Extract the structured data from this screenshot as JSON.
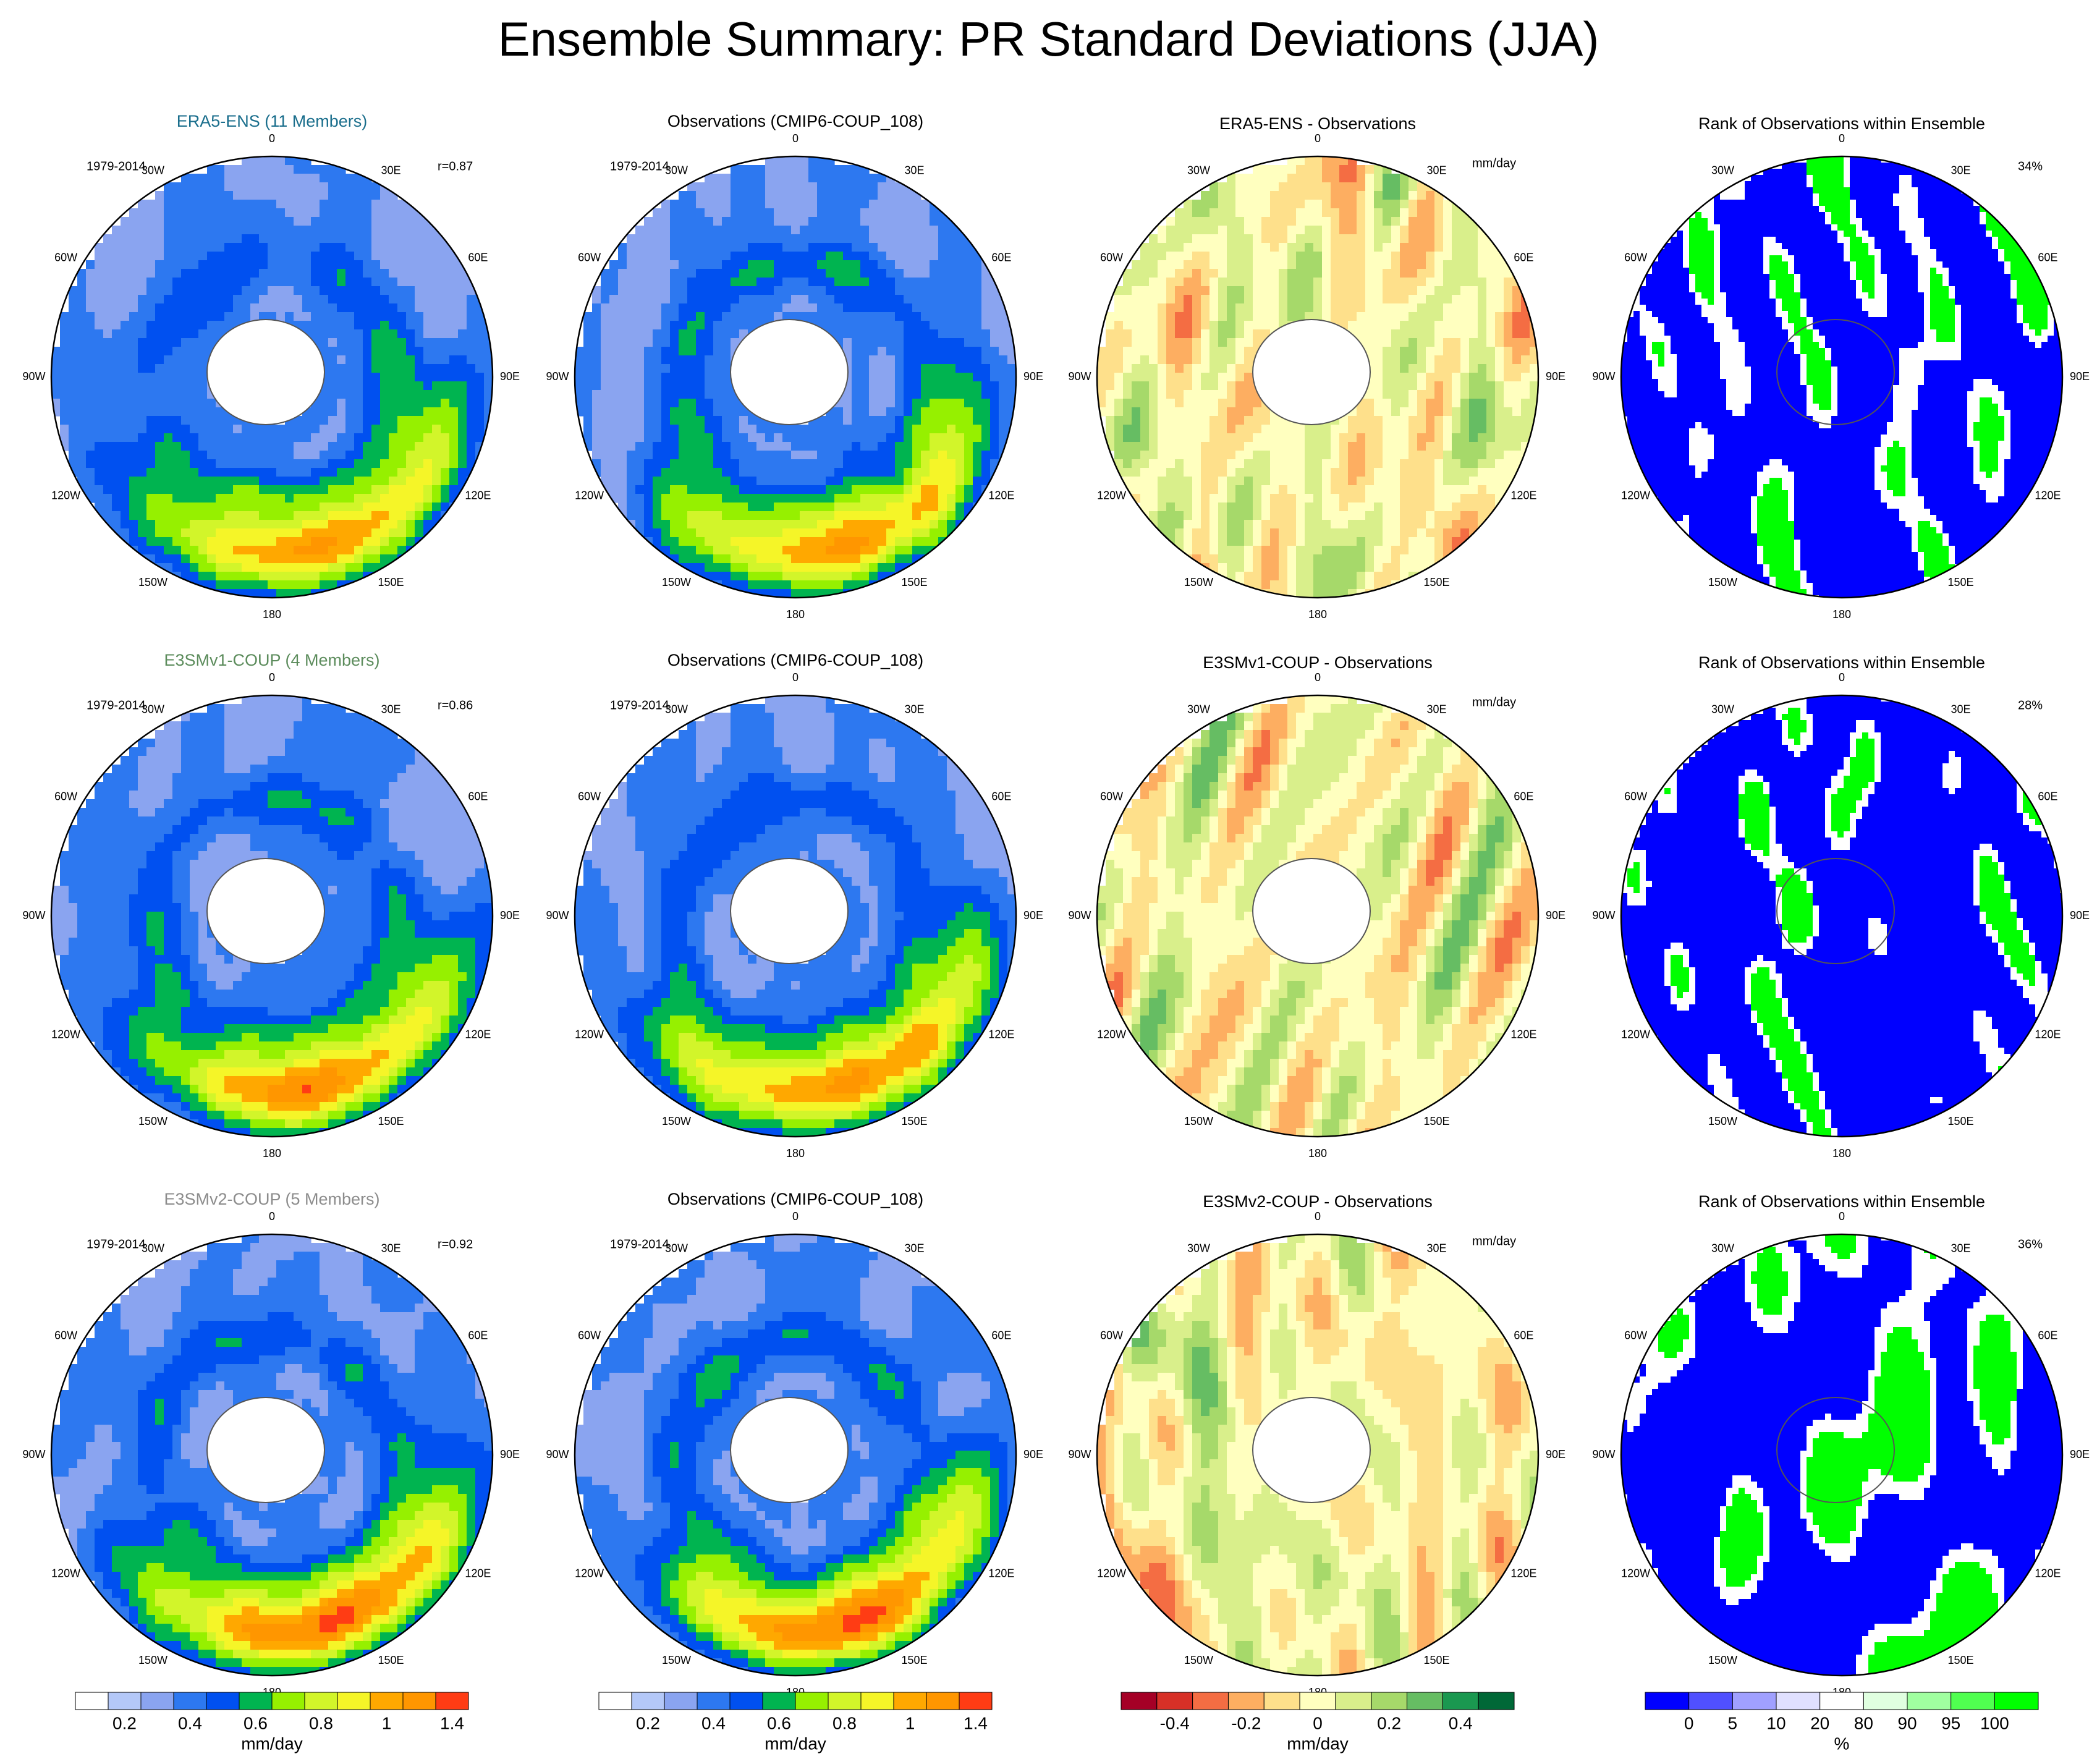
{
  "title": "Ensemble Summary: PR Standard Deviations (JJA)",
  "colors": {
    "sd": [
      "#ffffff",
      "#b4c8f8",
      "#8aa4f0",
      "#2d78f0",
      "#0050f0",
      "#00b450",
      "#96f000",
      "#d2f52a",
      "#f5f528",
      "#ffa800",
      "#ff9600",
      "#ff3c14"
    ],
    "diff": [
      "#a50026",
      "#d73027",
      "#f46d43",
      "#fdae61",
      "#fee08b",
      "#ffffbf",
      "#d9ef8b",
      "#a6d96a",
      "#66bd63",
      "#1a9850",
      "#006837"
    ],
    "rank": [
      "#0000ff",
      "#5050ff",
      "#a0a0ff",
      "#e0e0ff",
      "#ffffff",
      "#e0ffe0",
      "#a0ffa0",
      "#50ff50",
      "#00ff00"
    ],
    "land": "#ffffff",
    "coast": "#555555"
  },
  "common": {
    "obs_title": "Observations (CMIP6-COUP_108)",
    "rank_title": "Rank of Observations within Ensemble",
    "period": "1979-2014",
    "diff_units": "mm/day"
  },
  "lon_labels": [
    "0",
    "30E",
    "60E",
    "90E",
    "120E",
    "150E",
    "180",
    "150W",
    "120W",
    "90W",
    "60W",
    "30W"
  ],
  "rows": [
    {
      "ens_title": "ERA5-ENS (11 Members)",
      "ens_color": "#1a6e8c",
      "corr": "r=0.87",
      "diff_title": "ERA5-ENS - Observations",
      "rank_pct": "34%"
    },
    {
      "ens_title": "E3SMv1-COUP (4 Members)",
      "ens_color": "#5c8c5c",
      "corr": "r=0.86",
      "diff_title": "E3SMv1-COUP - Observations",
      "rank_pct": "28%"
    },
    {
      "ens_title": "E3SMv2-COUP (5 Members)",
      "ens_color": "#8c8c8c",
      "corr": "r=0.92",
      "diff_title": "E3SMv2-COUP - Observations",
      "rank_pct": "36%"
    }
  ],
  "colorbars": [
    {
      "ticks": [
        "0.2",
        "0.4",
        "0.6",
        "0.8",
        "1",
        "1.4"
      ],
      "units": "mm/day"
    },
    {
      "ticks": [
        "0.2",
        "0.4",
        "0.6",
        "0.8",
        "1",
        "1.4"
      ],
      "units": "mm/day"
    },
    {
      "ticks": [
        "-0.4",
        "-0.2",
        "0",
        "0.2",
        "0.4"
      ],
      "units": "mm/day"
    },
    {
      "ticks": [
        "0",
        "5",
        "10",
        "20",
        "80",
        "90",
        "95",
        "100"
      ],
      "units": "%"
    }
  ]
}
